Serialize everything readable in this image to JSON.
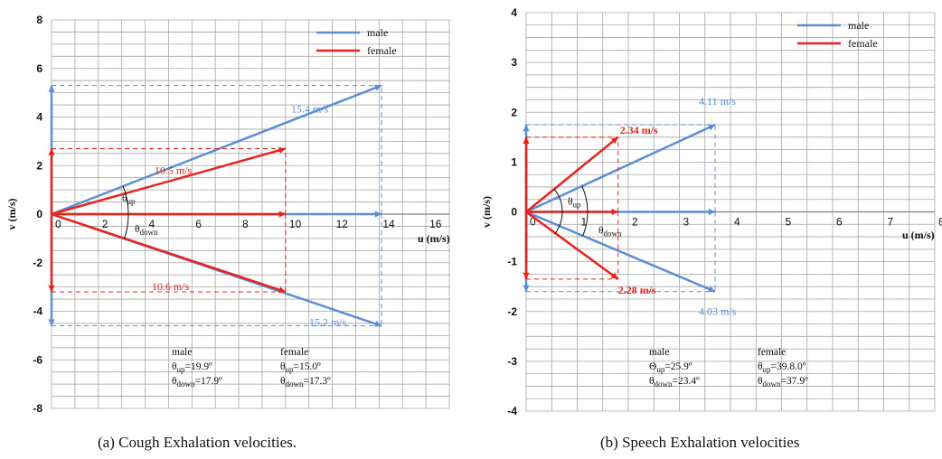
{
  "chart_data": [
    {
      "type": "vector",
      "caption": "(a)  Cough Exhalation velocities.",
      "xlabel": "u (m/s)",
      "ylabel": "v (m/s)",
      "xlim": [
        0,
        17
      ],
      "ylim": [
        -8,
        8
      ],
      "x_ticks": [
        "0",
        "2",
        "4",
        "6",
        "8",
        "10",
        "12",
        "14",
        "16"
      ],
      "y_ticks": [
        "8",
        "6",
        "4",
        "2",
        "0",
        "-2",
        "-4",
        "-6",
        "-8"
      ],
      "legend": [
        "male",
        "female"
      ],
      "colors": {
        "male": "#5b8fd1",
        "female": "#e8221d"
      },
      "vectors": [
        {
          "series": "male",
          "u": 14.1,
          "v": 5.3,
          "label": "15.4 m/s"
        },
        {
          "series": "male",
          "u": 14.1,
          "v": -4.6,
          "label": "15.2 m/s"
        },
        {
          "series": "female",
          "u": 10.0,
          "v": 2.7,
          "label": "10.5 m/s"
        },
        {
          "series": "female",
          "u": 10.0,
          "v": -3.2,
          "label": "10.6 m/s"
        }
      ],
      "angles": {
        "up": "θup",
        "down": "θdown"
      },
      "notes": {
        "male": {
          "title": "male",
          "up": "θup=19.9º",
          "down": "θdown=17.9º"
        },
        "female": {
          "title": "female",
          "up": "θup=15.0º",
          "down": "θdown=17.3º"
        }
      }
    },
    {
      "type": "vector",
      "caption": "(b)  Speech Exhalation velocities",
      "xlabel": "u (m/s)",
      "ylabel": "v (m/s)",
      "xlim": [
        0,
        8
      ],
      "ylim": [
        -4,
        4
      ],
      "x_ticks": [
        "0",
        "1",
        "2",
        "3",
        "4",
        "5",
        "6",
        "7",
        "8"
      ],
      "y_ticks": [
        "4",
        "3",
        "2",
        "1",
        "0",
        "-1",
        "-2",
        "-3",
        "-4"
      ],
      "legend": [
        "male",
        "female"
      ],
      "colors": {
        "male": "#5b8fd1",
        "female": "#e8221d"
      },
      "vectors": [
        {
          "series": "male",
          "u": 3.7,
          "v": 1.75,
          "label": "4.11 m/s"
        },
        {
          "series": "male",
          "u": 3.7,
          "v": -1.6,
          "label": "4.03 m/s"
        },
        {
          "series": "female",
          "u": 1.8,
          "v": 1.5,
          "label": "2.34 m/s"
        },
        {
          "series": "female",
          "u": 1.8,
          "v": -1.35,
          "label": "2.28 m/s"
        }
      ],
      "angles": {
        "up": "θup",
        "down": "θdown"
      },
      "notes": {
        "male": {
          "title": "male",
          "up": "Θup=25.9º",
          "down": "θdown=23.4º"
        },
        "female": {
          "title": "female",
          "up": "θup=39.8.0º",
          "down": "θdown=37.9º"
        }
      }
    }
  ]
}
